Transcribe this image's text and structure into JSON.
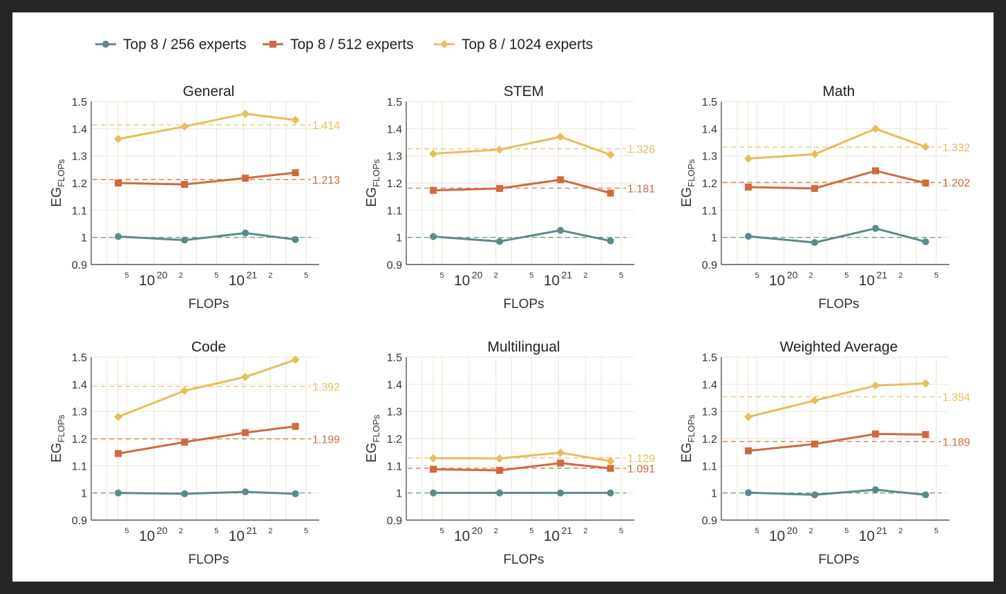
{
  "colors": {
    "s256": "#5b8a8a",
    "s512": "#cf6a3e",
    "s1024": "#e8bd5c",
    "grid": "#ecead8",
    "axis": "#3a3a3a",
    "text": "#333333"
  },
  "legend": [
    {
      "label": "Top 8 / 256 experts",
      "marker": "circle",
      "color_key": "s256"
    },
    {
      "label": "Top 8 / 512 experts",
      "marker": "square",
      "color_key": "s512"
    },
    {
      "label": "Top 8 / 1024 experts",
      "marker": "diamond",
      "color_key": "s1024"
    }
  ],
  "chart_data": [
    {
      "type": "line",
      "title": "General",
      "xlabel": "FLOPs",
      "ylabel": "EG",
      "ylabel_sub": "FLOPs",
      "xscale": "log",
      "xlim": [
        2e+19,
        7e+21
      ],
      "ylim": [
        0.9,
        1.5
      ],
      "yticks": [
        "0.9",
        "1",
        "1.1",
        "1.2",
        "1.3",
        "1.4",
        "1.5"
      ],
      "x": [
        4e+19,
        2.2e+20,
        1.05e+21,
        3.8e+21
      ],
      "series": [
        {
          "name": "Top 8 / 256 experts",
          "values": [
            1.003,
            0.99,
            1.016,
            0.992
          ],
          "ref": 1.0
        },
        {
          "name": "Top 8 / 512 experts",
          "values": [
            1.2,
            1.195,
            1.218,
            1.238
          ],
          "ref": 1.213,
          "ref_label": "1.213"
        },
        {
          "name": "Top 8 / 1024 experts",
          "values": [
            1.362,
            1.408,
            1.455,
            1.432
          ],
          "ref": 1.414,
          "ref_label": "1.414"
        }
      ]
    },
    {
      "type": "line",
      "title": "STEM",
      "xlabel": "FLOPs",
      "ylabel": "EG",
      "ylabel_sub": "FLOPs",
      "xscale": "log",
      "xlim": [
        2e+19,
        7e+21
      ],
      "ylim": [
        0.9,
        1.5
      ],
      "yticks": [
        "0.9",
        "1",
        "1.1",
        "1.2",
        "1.3",
        "1.4",
        "1.5"
      ],
      "x": [
        4e+19,
        2.2e+20,
        1.05e+21,
        3.8e+21
      ],
      "series": [
        {
          "name": "Top 8 / 256 experts",
          "values": [
            1.003,
            0.985,
            1.026,
            0.987
          ],
          "ref": 1.0
        },
        {
          "name": "Top 8 / 512 experts",
          "values": [
            1.173,
            1.18,
            1.212,
            1.163
          ],
          "ref": 1.181,
          "ref_label": "1.181"
        },
        {
          "name": "Top 8 / 1024 experts",
          "values": [
            1.308,
            1.323,
            1.37,
            1.304
          ],
          "ref": 1.326,
          "ref_label": "1.326"
        }
      ]
    },
    {
      "type": "line",
      "title": "Math",
      "xlabel": "FLOPs",
      "ylabel": "EG",
      "ylabel_sub": "FLOPs",
      "xscale": "log",
      "xlim": [
        2e+19,
        7e+21
      ],
      "ylim": [
        0.9,
        1.5
      ],
      "yticks": [
        "0.9",
        "1",
        "1.1",
        "1.2",
        "1.3",
        "1.4",
        "1.5"
      ],
      "x": [
        4e+19,
        2.2e+20,
        1.05e+21,
        3.8e+21
      ],
      "series": [
        {
          "name": "Top 8 / 256 experts",
          "values": [
            1.004,
            0.981,
            1.033,
            0.984
          ],
          "ref": 1.0
        },
        {
          "name": "Top 8 / 512 experts",
          "values": [
            1.185,
            1.18,
            1.245,
            1.2
          ],
          "ref": 1.202,
          "ref_label": "1.202"
        },
        {
          "name": "Top 8 / 1024 experts",
          "values": [
            1.29,
            1.306,
            1.4,
            1.333
          ],
          "ref": 1.332,
          "ref_label": "1.332"
        }
      ]
    },
    {
      "type": "line",
      "title": "Code",
      "xlabel": "FLOPs",
      "ylabel": "EG",
      "ylabel_sub": "FLOPs",
      "xscale": "log",
      "xlim": [
        2e+19,
        7e+21
      ],
      "ylim": [
        0.9,
        1.5
      ],
      "yticks": [
        "0.9",
        "1",
        "1.1",
        "1.2",
        "1.3",
        "1.4",
        "1.5"
      ],
      "x": [
        4e+19,
        2.2e+20,
        1.05e+21,
        3.8e+21
      ],
      "series": [
        {
          "name": "Top 8 / 256 experts",
          "values": [
            1.0,
            0.997,
            1.004,
            0.997
          ],
          "ref": 1.0
        },
        {
          "name": "Top 8 / 512 experts",
          "values": [
            1.145,
            1.187,
            1.222,
            1.245
          ],
          "ref": 1.199,
          "ref_label": "1.199"
        },
        {
          "name": "Top 8 / 1024 experts",
          "values": [
            1.28,
            1.376,
            1.427,
            1.49
          ],
          "ref": 1.392,
          "ref_label": "1.392"
        }
      ]
    },
    {
      "type": "line",
      "title": "Multilingual",
      "xlabel": "FLOPs",
      "ylabel": "EG",
      "ylabel_sub": "FLOPs",
      "xscale": "log",
      "xlim": [
        2e+19,
        7e+21
      ],
      "ylim": [
        0.9,
        1.5
      ],
      "yticks": [
        "0.9",
        "1",
        "1.1",
        "1.2",
        "1.3",
        "1.4",
        "1.5"
      ],
      "x": [
        4e+19,
        2.2e+20,
        1.05e+21,
        3.8e+21
      ],
      "series": [
        {
          "name": "Top 8 / 256 experts",
          "values": [
            1.0,
            1.0,
            1.0,
            1.0
          ],
          "ref": 1.0
        },
        {
          "name": "Top 8 / 512 experts",
          "values": [
            1.087,
            1.083,
            1.11,
            1.09
          ],
          "ref": 1.091,
          "ref_label": "1.091"
        },
        {
          "name": "Top 8 / 1024 experts",
          "values": [
            1.128,
            1.127,
            1.148,
            1.117
          ],
          "ref": 1.129,
          "ref_label": "1.129"
        }
      ]
    },
    {
      "type": "line",
      "title": "Weighted Average",
      "xlabel": "FLOPs",
      "ylabel": "EG",
      "ylabel_sub": "FLOPs",
      "xscale": "log",
      "xlim": [
        2e+19,
        7e+21
      ],
      "ylim": [
        0.9,
        1.5
      ],
      "yticks": [
        "0.9",
        "1",
        "1.1",
        "1.2",
        "1.3",
        "1.4",
        "1.5"
      ],
      "x": [
        4e+19,
        2.2e+20,
        1.05e+21,
        3.8e+21
      ],
      "series": [
        {
          "name": "Top 8 / 256 experts",
          "values": [
            1.001,
            0.993,
            1.012,
            0.993
          ],
          "ref": 1.0
        },
        {
          "name": "Top 8 / 512 experts",
          "values": [
            1.155,
            1.18,
            1.217,
            1.215
          ],
          "ref": 1.189,
          "ref_label": "1.189"
        },
        {
          "name": "Top 8 / 1024 experts",
          "values": [
            1.28,
            1.34,
            1.395,
            1.403
          ],
          "ref": 1.354,
          "ref_label": "1.354"
        }
      ]
    }
  ],
  "xaxis_ticks": [
    {
      "label": "5",
      "value": 5e+19,
      "minor": true
    },
    {
      "label": "10",
      "exp": "20",
      "value": 1e+20,
      "minor": false
    },
    {
      "label": "2",
      "value": 2e+20,
      "minor": true
    },
    {
      "label": "5",
      "value": 5e+20,
      "minor": true
    },
    {
      "label": "10",
      "exp": "21",
      "value": 1e+21,
      "minor": false
    },
    {
      "label": "2",
      "value": 2e+21,
      "minor": true
    },
    {
      "label": "5",
      "value": 5e+21,
      "minor": true
    }
  ],
  "xaxis_gridlines": [
    3e+19,
    4e+19,
    5e+19,
    1e+20,
    2e+20,
    3e+20,
    5e+20,
    1e+21,
    2e+21,
    3e+21,
    5e+21
  ]
}
